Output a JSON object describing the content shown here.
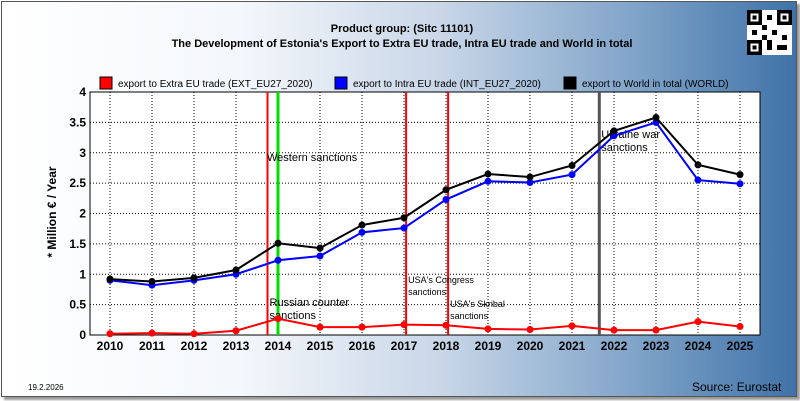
{
  "header": {
    "line1": "Product group:  (Sitc 11101)",
    "line2": "The Development of Estonia's Export to Extra EU trade, Intra EU trade and World in total"
  },
  "footer": {
    "date": "19.2.2026",
    "source": "Source: Eurostat"
  },
  "chart_data": {
    "type": "line",
    "ylabel": "* Million € / Year",
    "ylim": [
      0,
      4
    ],
    "yticks": [
      "0",
      "0.5",
      "1",
      "1.5",
      "2",
      "2.5",
      "3",
      "3.5",
      "4"
    ],
    "x": [
      "2010",
      "2011",
      "2012",
      "2013",
      "2014",
      "2015",
      "2016",
      "2017",
      "2018",
      "2019",
      "2020",
      "2021",
      "2022",
      "2023",
      "2024",
      "2025"
    ],
    "grid": true,
    "legend_position": "top",
    "series": [
      {
        "name": "export to Extra EU trade (EXT_EU27_2020)",
        "color": "#ff0000",
        "values": [
          0.02,
          0.03,
          0.02,
          0.07,
          0.27,
          0.13,
          0.13,
          0.17,
          0.16,
          0.1,
          0.09,
          0.15,
          0.08,
          0.08,
          0.22,
          0.14
        ]
      },
      {
        "name": "export to Intra EU trade (INT_EU27_2020)",
        "color": "#0000ff",
        "values": [
          0.9,
          0.82,
          0.9,
          1.0,
          1.23,
          1.3,
          1.69,
          1.76,
          2.23,
          2.53,
          2.51,
          2.64,
          3.28,
          3.5,
          2.55,
          2.49
        ]
      },
      {
        "name": "export to World in total (WORLD)",
        "color": "#000000",
        "values": [
          0.92,
          0.88,
          0.94,
          1.07,
          1.51,
          1.43,
          1.81,
          1.93,
          2.39,
          2.65,
          2.6,
          2.79,
          3.36,
          3.58,
          2.8,
          2.64
        ]
      }
    ],
    "events": [
      {
        "label": "Western sanctions",
        "year": 2014.0,
        "color": "#00dd00"
      },
      {
        "label": "Russian counter sanctions",
        "year": 2013.75,
        "color": "#ff0000"
      },
      {
        "label": "USA's Congress sanctions",
        "year": 2017.05,
        "color": "#ff0000"
      },
      {
        "label": "USA's Skribal sanctions",
        "year": 2018.05,
        "color": "#ff0000"
      },
      {
        "label": "Ukraine war sanctions",
        "year": 2021.65,
        "color": "#555555"
      }
    ]
  }
}
